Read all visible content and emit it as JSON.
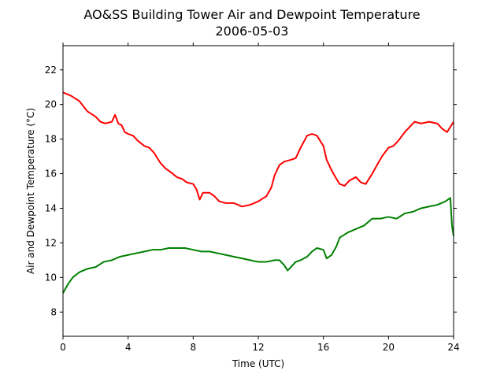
{
  "chart_data": {
    "type": "line",
    "title": "AO&SS Building Tower Air and Dewpoint Temperature",
    "subtitle": "2006-05-03",
    "xlabel": "Time (UTC)",
    "ylabel": "Air and Dewpoint Temperature (°C)",
    "xlim": [
      0,
      24
    ],
    "ylim": [
      6.6,
      23.4
    ],
    "xticks": [
      0,
      4,
      8,
      12,
      16,
      20,
      24
    ],
    "xtick_labels": [
      "0",
      "4",
      "8",
      "12",
      "16",
      "20",
      "24"
    ],
    "yticks": [
      8,
      10,
      12,
      14,
      16,
      18,
      20,
      22
    ],
    "ytick_labels": [
      "8",
      "10",
      "12",
      "14",
      "16",
      "18",
      "20",
      "22"
    ],
    "grid": false,
    "legend": "none",
    "series": [
      {
        "color": "#ff0000",
        "x": [
          0,
          0.5,
          1,
          1.5,
          2,
          2.3,
          2.6,
          3,
          3.2,
          3.4,
          3.6,
          3.8,
          4,
          4.3,
          4.6,
          5,
          5.3,
          5.6,
          6,
          6.3,
          6.6,
          7,
          7.3,
          7.6,
          8,
          8.2,
          8.4,
          8.6,
          9,
          9.3,
          9.6,
          10,
          10.5,
          11,
          11.5,
          12,
          12.5,
          12.8,
          13,
          13.3,
          13.6,
          14,
          14.3,
          14.6,
          15,
          15.3,
          15.6,
          16,
          16.2,
          16.5,
          16.8,
          17,
          17.3,
          17.6,
          18,
          18.3,
          18.6,
          19,
          19.3,
          19.6,
          20,
          20.3,
          20.6,
          21,
          21.3,
          21.6,
          22,
          22.5,
          23,
          23.3,
          23.6,
          24
        ],
        "y": [
          20.7,
          20.5,
          20.2,
          19.6,
          19.3,
          19.0,
          18.9,
          19.0,
          19.4,
          18.9,
          18.8,
          18.4,
          18.3,
          18.2,
          17.9,
          17.6,
          17.5,
          17.2,
          16.6,
          16.3,
          16.1,
          15.8,
          15.7,
          15.5,
          15.4,
          15.1,
          14.5,
          14.9,
          14.9,
          14.7,
          14.4,
          14.3,
          14.3,
          14.1,
          14.2,
          14.4,
          14.7,
          15.2,
          15.9,
          16.5,
          16.7,
          16.8,
          16.9,
          17.5,
          18.2,
          18.3,
          18.2,
          17.6,
          16.8,
          16.2,
          15.7,
          15.4,
          15.3,
          15.6,
          15.8,
          15.5,
          15.4,
          16.0,
          16.5,
          17.0,
          17.5,
          17.6,
          17.9,
          18.4,
          18.7,
          19.0,
          18.9,
          19.0,
          18.9,
          18.6,
          18.4,
          19.0
        ]
      },
      {
        "color": "#008000",
        "x": [
          0,
          0.3,
          0.6,
          1,
          1.5,
          2,
          2.5,
          3,
          3.5,
          4,
          4.5,
          5,
          5.5,
          6,
          6.5,
          7,
          7.5,
          8,
          8.5,
          9,
          9.5,
          10,
          10.5,
          11,
          11.5,
          12,
          12.5,
          13,
          13.3,
          13.6,
          13.8,
          14,
          14.3,
          14.6,
          15,
          15.3,
          15.6,
          16,
          16.2,
          16.5,
          16.8,
          17,
          17.5,
          18,
          18.5,
          19,
          19.5,
          20,
          20.5,
          21,
          21.5,
          22,
          22.5,
          23,
          23.5,
          23.8,
          23.9,
          24
        ],
        "y": [
          9.1,
          9.6,
          10.0,
          10.3,
          10.5,
          10.6,
          10.9,
          11.0,
          11.2,
          11.3,
          11.4,
          11.5,
          11.6,
          11.6,
          11.7,
          11.7,
          11.7,
          11.6,
          11.5,
          11.5,
          11.4,
          11.3,
          11.2,
          11.1,
          11.0,
          10.9,
          10.9,
          11.0,
          11.0,
          10.7,
          10.4,
          10.6,
          10.9,
          11.0,
          11.2,
          11.5,
          11.7,
          11.6,
          11.1,
          11.3,
          11.8,
          12.3,
          12.6,
          12.8,
          13.0,
          13.4,
          13.4,
          13.5,
          13.4,
          13.7,
          13.8,
          14.0,
          14.1,
          14.2,
          14.4,
          14.6,
          13.0,
          12.4
        ]
      }
    ]
  }
}
